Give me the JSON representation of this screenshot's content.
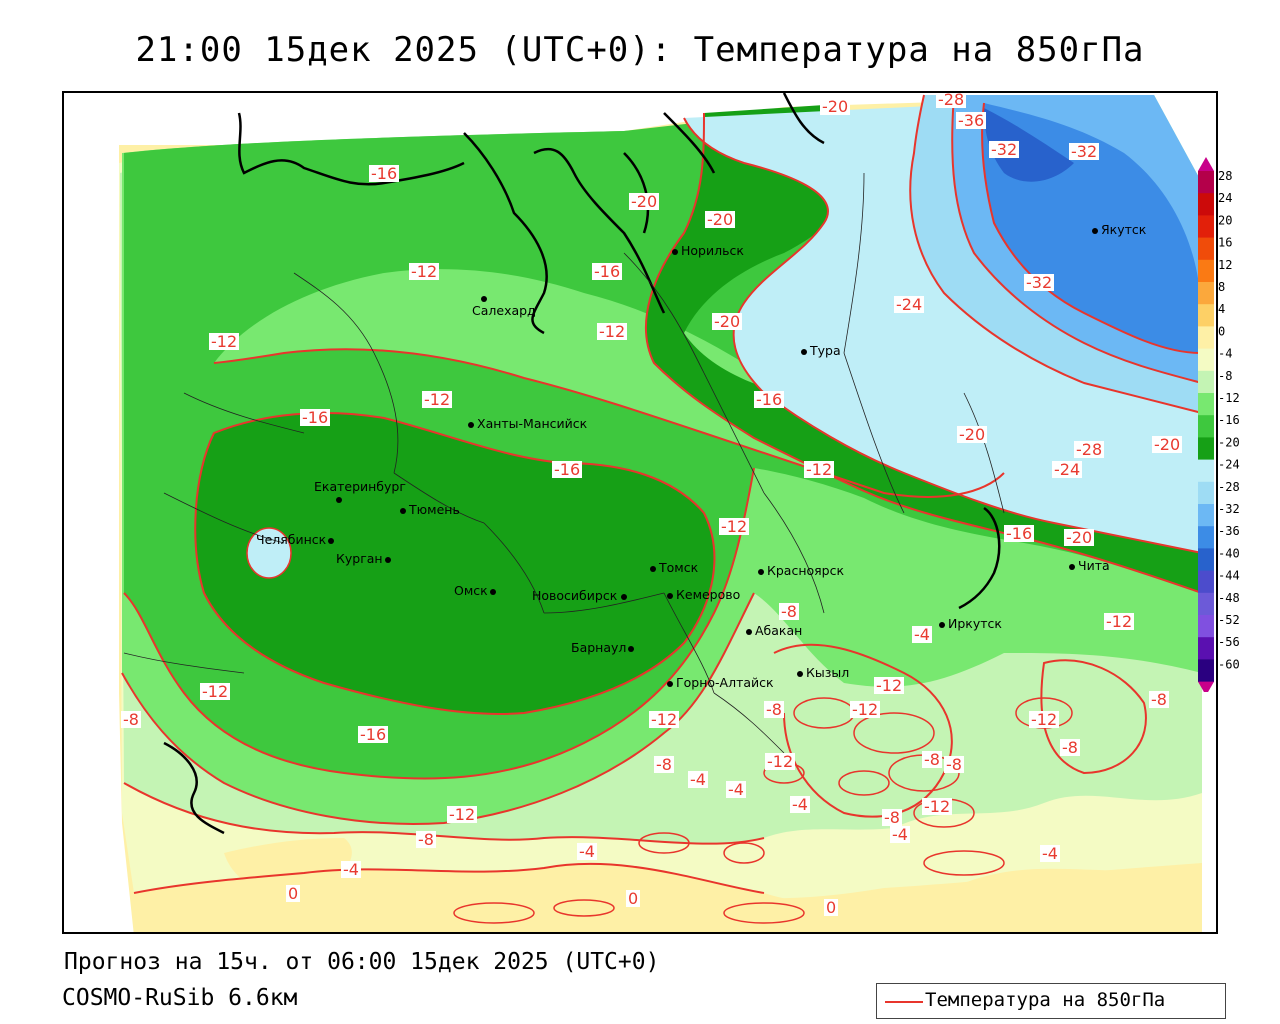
{
  "title": "21:00 15дек 2025 (UTC+0): Температура на 850гПа",
  "footer": {
    "forecast": "Прогноз на 15ч. от 06:00 15дек 2025 (UTC+0)",
    "model": "COSMO-RuSib 6.6км"
  },
  "legend": {
    "label": "Температура на 850гПа",
    "line_color": "#e8352c"
  },
  "colorbar": {
    "ticks": [
      "28",
      "24",
      "20",
      "16",
      "12",
      "8",
      "4",
      "0",
      "-4",
      "-8",
      "-12",
      "-16",
      "-20",
      "-24",
      "-28",
      "-32",
      "-36",
      "-40",
      "-44",
      "-48",
      "-52",
      "-56",
      "-60"
    ],
    "colors": [
      "#b4004a",
      "#cc0a0a",
      "#e2200a",
      "#f04c0a",
      "#fa7a14",
      "#fba83c",
      "#fdd066",
      "#fef0a6",
      "#f4fbc4",
      "#c4f4b4",
      "#78e870",
      "#3ec83e",
      "#16a016",
      "#bfeef7",
      "#9edcf4",
      "#6cb8f4",
      "#3c8ce6",
      "#2862cc",
      "#4c4ccc",
      "#6c5ad8",
      "#8050e0",
      "#5a10b0",
      "#2a0080"
    ]
  },
  "cities": [
    {
      "name": "Салехард"
    },
    {
      "name": "Норильск"
    },
    {
      "name": "Тура"
    },
    {
      "name": "Якутск"
    },
    {
      "name": "Ханты-Мансийск"
    },
    {
      "name": "Екатеринбург"
    },
    {
      "name": "Тюмень"
    },
    {
      "name": "Челябинск"
    },
    {
      "name": "Курган"
    },
    {
      "name": "Омск"
    },
    {
      "name": "Новосибирск"
    },
    {
      "name": "Томск"
    },
    {
      "name": "Кемерово"
    },
    {
      "name": "Красноярск"
    },
    {
      "name": "Барнаул"
    },
    {
      "name": "Абакан"
    },
    {
      "name": "Иркутск"
    },
    {
      "name": "Кызыл"
    },
    {
      "name": "Горно-Алтайск"
    },
    {
      "name": "Чита"
    }
  ],
  "contour_labels": [
    "-16",
    "-12",
    "-12",
    "-16",
    "-20",
    "-20",
    "-20",
    "-28",
    "-36",
    "-32",
    "-32",
    "-32",
    "-24",
    "-12",
    "-20",
    "-16",
    "-12",
    "-16",
    "-16",
    "-12",
    "-12",
    "-12",
    "-20",
    "-28",
    "-24",
    "-20",
    "-16",
    "-20",
    "-12",
    "-8",
    "-8",
    "-4",
    "-12",
    "-12",
    "-12",
    "-16",
    "-8",
    "-12",
    "-8",
    "-4",
    "-4",
    "-12",
    "-4",
    "-8",
    "-8",
    "-4",
    "-12",
    "-8",
    "-8",
    "-12",
    "-8",
    "-4",
    "-4",
    "-8",
    "-4",
    "0",
    "0",
    "0"
  ]
}
